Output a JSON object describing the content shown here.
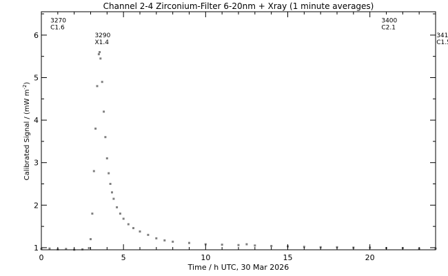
{
  "chart_data": {
    "type": "scatter",
    "title": "Channel 2-4   Zirconium-Filter   6-20nm + Xray   (1 minute averages)",
    "xlabel": "Time / h UTC, 30 Mar 2026",
    "ylabel": "Calibrated Signal / (mW m",
    "ylabel_sup": "-2",
    "ylabel_close": ")",
    "xlim": [
      0,
      24
    ],
    "ylim": [
      0.95,
      6.55
    ],
    "x_ticks": [
      0,
      5,
      10,
      15,
      20
    ],
    "y_ticks": [
      1,
      2,
      3,
      4,
      5,
      6
    ],
    "grid": false,
    "annotations": [
      {
        "x": 0.55,
        "y": 6.3,
        "lines": [
          "3270",
          "C1.6"
        ]
      },
      {
        "x": 3.25,
        "y": 5.95,
        "lines": [
          "3290",
          "X1.4"
        ]
      },
      {
        "x": 20.7,
        "y": 6.3,
        "lines": [
          "3400",
          "C2.1"
        ]
      },
      {
        "x": 24.05,
        "y": 5.95,
        "lines": [
          "341",
          "C1.5"
        ]
      }
    ],
    "series": [
      {
        "color": "#808080",
        "x": [
          0.0,
          0.5,
          1.0,
          1.5,
          2.0,
          2.5,
          2.9,
          3.0,
          3.1,
          3.2,
          3.3,
          3.4,
          3.5,
          3.55,
          3.6,
          3.7,
          3.8,
          3.9,
          4.0,
          4.1,
          4.2,
          4.3,
          4.4,
          4.6,
          4.8,
          5.0,
          5.3,
          5.6,
          6.0,
          6.5,
          7.0,
          7.5,
          8.0,
          9.0,
          10.0,
          11.0,
          12.0,
          12.5,
          13.0,
          14.0,
          15.0,
          16.0,
          17.0,
          18.0,
          19.0,
          20.0,
          21.0,
          22.0,
          23.0,
          24.0
        ],
        "y": [
          0.97,
          0.98,
          0.96,
          0.97,
          0.95,
          0.96,
          0.99,
          1.2,
          1.8,
          2.8,
          3.8,
          4.8,
          5.55,
          5.6,
          5.45,
          4.9,
          4.2,
          3.6,
          3.1,
          2.75,
          2.5,
          2.3,
          2.15,
          1.95,
          1.8,
          1.68,
          1.55,
          1.46,
          1.38,
          1.3,
          1.22,
          1.17,
          1.14,
          1.11,
          1.08,
          1.07,
          1.06,
          1.08,
          1.05,
          1.04,
          1.03,
          1.02,
          1.01,
          1.01,
          1.0,
          1.0,
          0.99,
          0.99,
          0.98,
          0.98
        ]
      }
    ]
  }
}
